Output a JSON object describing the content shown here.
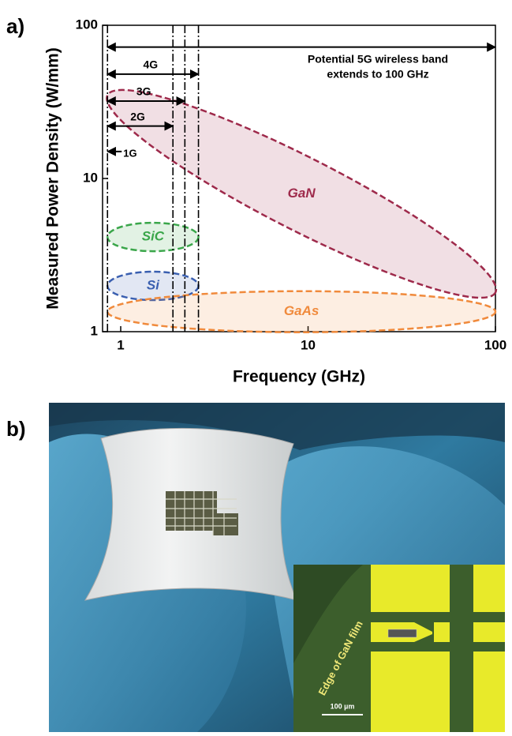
{
  "panel_a_label": "a)",
  "chart_data": {
    "type": "region",
    "xlabel": "Frequency (GHz)",
    "ylabel": "Measured Power Density (W/mm)",
    "xscale": "log",
    "yscale": "log",
    "xlim": [
      0.8,
      100
    ],
    "ylim": [
      1,
      100
    ],
    "xticks": [
      1,
      10,
      100
    ],
    "yticks": [
      1,
      10,
      100
    ],
    "series": [
      {
        "name": "GaN",
        "color": "#9e2a4b",
        "x": [
          0.85,
          100
        ],
        "y": [
          35,
          1.8
        ]
      },
      {
        "name": "SiC",
        "color": "#3aa64a",
        "x": [
          0.85,
          2.6
        ],
        "y": [
          4.15,
          4.15
        ]
      },
      {
        "name": "Si",
        "color": "#3a5fb0",
        "x": [
          0.85,
          2.6
        ],
        "y": [
          1.99,
          1.99
        ]
      },
      {
        "name": "GaAs",
        "color": "#f08a3c",
        "x": [
          0.85,
          100
        ],
        "y": [
          1.35,
          1.35
        ]
      }
    ],
    "bands": [
      {
        "label": "1G",
        "x": 0.85,
        "y": 15
      },
      {
        "label": "2G",
        "x": 1.9,
        "y": 22
      },
      {
        "label": "3G",
        "x": 2.2,
        "y": 32
      },
      {
        "label": "4G",
        "x": 2.6,
        "y": 48
      },
      {
        "label": [
          "Potential 5G wireless band",
          "extends to 100 GHz"
        ],
        "x": 100,
        "y": 72
      }
    ]
  },
  "panel_b": {
    "label": "b)",
    "inset_labels": [
      "Edge of GaN film",
      "100 µm"
    ]
  }
}
